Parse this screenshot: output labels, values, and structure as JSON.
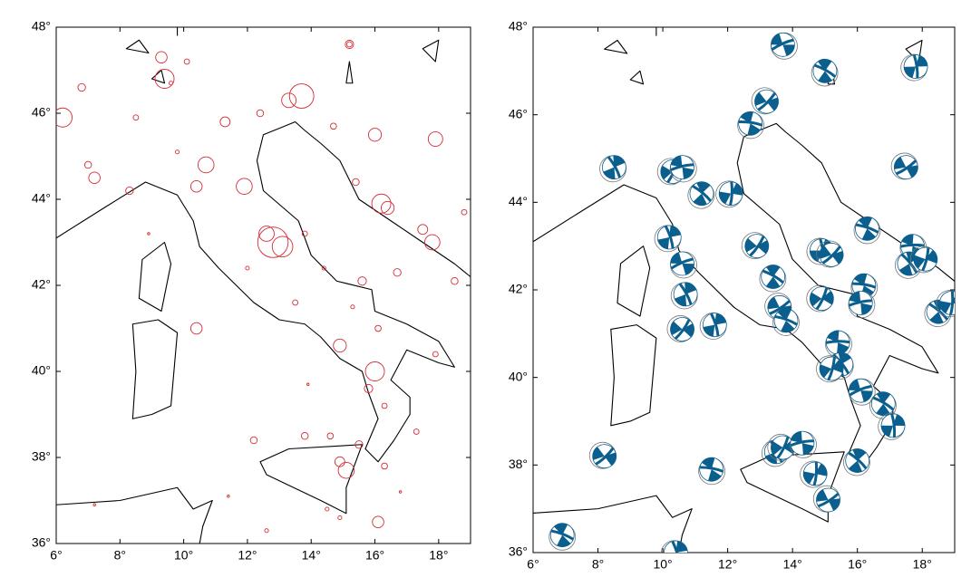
{
  "left_map": {
    "xticks": [
      {
        "value": 6,
        "label": "6°"
      },
      {
        "value": 8,
        "label": "8°"
      },
      {
        "value": 10,
        "label": "10°"
      },
      {
        "value": 12,
        "label": "12°"
      },
      {
        "value": 14,
        "label": "14°"
      },
      {
        "value": 16,
        "label": "16°"
      },
      {
        "value": 18,
        "label": "18°"
      }
    ],
    "yticks": [
      {
        "value": 36,
        "label": "36°"
      },
      {
        "value": 38,
        "label": "38°"
      },
      {
        "value": 40,
        "label": "40°"
      },
      {
        "value": 42,
        "label": "42°"
      },
      {
        "value": 44,
        "label": "44°"
      },
      {
        "value": 46,
        "label": "46°"
      },
      {
        "value": 48,
        "label": "48°"
      }
    ],
    "xlim": [
      6,
      19
    ],
    "ylim": [
      36,
      48
    ],
    "events": [
      {
        "lon": 12.8,
        "lat": 43.0,
        "mag": 6.5
      },
      {
        "lon": 13.1,
        "lat": 42.9,
        "mag": 5.2
      },
      {
        "lon": 12.6,
        "lat": 43.2,
        "mag": 4.5
      },
      {
        "lon": 11.9,
        "lat": 44.3,
        "mag": 4.6
      },
      {
        "lon": 10.7,
        "lat": 44.8,
        "mag": 4.6
      },
      {
        "lon": 10.4,
        "lat": 44.3,
        "mag": 4
      },
      {
        "lon": 9.4,
        "lat": 46.8,
        "mag": 5
      },
      {
        "lon": 9.3,
        "lat": 47.3,
        "mag": 4
      },
      {
        "lon": 13.7,
        "lat": 46.4,
        "mag": 5.7
      },
      {
        "lon": 13.3,
        "lat": 46.3,
        "mag": 4.4
      },
      {
        "lon": 6.2,
        "lat": 45.9,
        "mag": 5
      },
      {
        "lon": 6.8,
        "lat": 46.6,
        "mag": 3.5
      },
      {
        "lon": 16.2,
        "lat": 43.9,
        "mag": 5
      },
      {
        "lon": 16.4,
        "lat": 43.8,
        "mag": 4.2
      },
      {
        "lon": 17.8,
        "lat": 43.0,
        "mag": 4.5
      },
      {
        "lon": 17.5,
        "lat": 43.3,
        "mag": 3.8
      },
      {
        "lon": 15.1,
        "lat": 37.7,
        "mag": 4.6
      },
      {
        "lon": 14.9,
        "lat": 37.9,
        "mag": 3.8
      },
      {
        "lon": 16.0,
        "lat": 40.0,
        "mag": 5
      },
      {
        "lon": 16.1,
        "lat": 36.5,
        "mag": 4
      },
      {
        "lon": 14.9,
        "lat": 40.6,
        "mag": 4.2
      },
      {
        "lon": 15.6,
        "lat": 42.1,
        "mag": 3.6
      },
      {
        "lon": 10.4,
        "lat": 41.0,
        "mag": 4
      },
      {
        "lon": 8.3,
        "lat": 44.2,
        "mag": 3.5
      },
      {
        "lon": 7.2,
        "lat": 44.5,
        "mag": 4
      },
      {
        "lon": 7.0,
        "lat": 44.8,
        "mag": 3.4
      },
      {
        "lon": 16.0,
        "lat": 45.5,
        "mag": 4.2
      },
      {
        "lon": 17.9,
        "lat": 45.4,
        "mag": 4.4
      },
      {
        "lon": 15.2,
        "lat": 47.6,
        "mag": 3.6
      },
      {
        "lon": 9.6,
        "lat": 46.7,
        "mag": 3
      },
      {
        "lon": 11.3,
        "lat": 45.8,
        "mag": 3.8
      },
      {
        "lon": 12.4,
        "lat": 46.0,
        "mag": 3.4
      },
      {
        "lon": 14.7,
        "lat": 45.7,
        "mag": 3.3
      },
      {
        "lon": 15.4,
        "lat": 44.4,
        "mag": 3.4
      },
      {
        "lon": 16.7,
        "lat": 42.3,
        "mag": 3.5
      },
      {
        "lon": 18.5,
        "lat": 42.1,
        "mag": 3.4
      },
      {
        "lon": 18.8,
        "lat": 43.7,
        "mag": 3.2
      },
      {
        "lon": 13.8,
        "lat": 43.2,
        "mag": 3.2
      },
      {
        "lon": 14.4,
        "lat": 42.4,
        "mag": 3
      },
      {
        "lon": 12.0,
        "lat": 42.4,
        "mag": 3
      },
      {
        "lon": 13.5,
        "lat": 41.6,
        "mag": 3.2
      },
      {
        "lon": 15.3,
        "lat": 41.5,
        "mag": 3
      },
      {
        "lon": 16.1,
        "lat": 41.0,
        "mag": 3.3
      },
      {
        "lon": 15.8,
        "lat": 39.6,
        "mag": 3.6
      },
      {
        "lon": 16.3,
        "lat": 39.2,
        "mag": 3.2
      },
      {
        "lon": 17.9,
        "lat": 40.4,
        "mag": 3.2
      },
      {
        "lon": 12.2,
        "lat": 38.4,
        "mag": 3.4
      },
      {
        "lon": 13.8,
        "lat": 38.5,
        "mag": 3.4
      },
      {
        "lon": 14.6,
        "lat": 38.5,
        "mag": 3.3
      },
      {
        "lon": 15.5,
        "lat": 38.3,
        "mag": 3.5
      },
      {
        "lon": 16.3,
        "lat": 37.8,
        "mag": 3.3
      },
      {
        "lon": 14.5,
        "lat": 36.8,
        "mag": 3
      },
      {
        "lon": 12.6,
        "lat": 36.3,
        "mag": 3
      },
      {
        "lon": 11.4,
        "lat": 37.1,
        "mag": 2.8
      },
      {
        "lon": 7.2,
        "lat": 36.9,
        "mag": 2.8
      },
      {
        "lon": 8.9,
        "lat": 43.2,
        "mag": 2.8
      },
      {
        "lon": 9.8,
        "lat": 45.1,
        "mag": 3
      },
      {
        "lon": 8.5,
        "lat": 45.9,
        "mag": 3.2
      },
      {
        "lon": 15.2,
        "lat": 47.6,
        "mag": 3.2
      },
      {
        "lon": 13.9,
        "lat": 39.7,
        "mag": 2.8
      },
      {
        "lon": 17.3,
        "lat": 38.6,
        "mag": 3.2
      },
      {
        "lon": 16.8,
        "lat": 37.2,
        "mag": 2.8
      },
      {
        "lon": 14.9,
        "lat": 36.6,
        "mag": 3
      },
      {
        "lon": 10.1,
        "lat": 47.2,
        "mag": 3.2
      }
    ]
  },
  "right_map": {
    "xticks": [
      {
        "value": 6,
        "label": "6°"
      },
      {
        "value": 8,
        "label": "8°"
      },
      {
        "value": 10,
        "label": "10°"
      },
      {
        "value": 12,
        "label": "12°"
      },
      {
        "value": 14,
        "label": "14°"
      },
      {
        "value": 16,
        "label": "16°"
      },
      {
        "value": 18,
        "label": "18°"
      }
    ],
    "yticks": [
      {
        "value": 36,
        "label": "36°"
      },
      {
        "value": 38,
        "label": "38°"
      },
      {
        "value": 40,
        "label": "40°"
      },
      {
        "value": 42,
        "label": "42°"
      },
      {
        "value": 44,
        "label": "44°"
      },
      {
        "value": 46,
        "label": "46°"
      },
      {
        "value": 48,
        "label": "48°"
      }
    ],
    "xlim": [
      6,
      19
    ],
    "ylim": [
      36,
      48
    ],
    "mechanisms": [
      {
        "lon": 13.7,
        "lat": 47.6
      },
      {
        "lon": 15.0,
        "lat": 47.0
      },
      {
        "lon": 17.8,
        "lat": 47.1
      },
      {
        "lon": 13.2,
        "lat": 46.3
      },
      {
        "lon": 12.7,
        "lat": 45.8
      },
      {
        "lon": 8.5,
        "lat": 44.8
      },
      {
        "lon": 10.3,
        "lat": 44.7
      },
      {
        "lon": 10.6,
        "lat": 44.8
      },
      {
        "lon": 11.2,
        "lat": 44.2
      },
      {
        "lon": 12.1,
        "lat": 44.2
      },
      {
        "lon": 17.5,
        "lat": 44.8
      },
      {
        "lon": 16.3,
        "lat": 43.4
      },
      {
        "lon": 10.2,
        "lat": 43.2
      },
      {
        "lon": 12.9,
        "lat": 43.0
      },
      {
        "lon": 17.7,
        "lat": 43.0
      },
      {
        "lon": 17.6,
        "lat": 42.6
      },
      {
        "lon": 18.1,
        "lat": 42.7
      },
      {
        "lon": 10.6,
        "lat": 42.6
      },
      {
        "lon": 13.4,
        "lat": 42.3
      },
      {
        "lon": 14.9,
        "lat": 42.9
      },
      {
        "lon": 15.2,
        "lat": 42.8
      },
      {
        "lon": 16.2,
        "lat": 42.1
      },
      {
        "lon": 10.7,
        "lat": 41.9
      },
      {
        "lon": 14.9,
        "lat": 41.8
      },
      {
        "lon": 16.1,
        "lat": 41.7
      },
      {
        "lon": 18.5,
        "lat": 41.5
      },
      {
        "lon": 18.9,
        "lat": 41.7
      },
      {
        "lon": 13.6,
        "lat": 41.6
      },
      {
        "lon": 13.8,
        "lat": 41.3
      },
      {
        "lon": 11.6,
        "lat": 41.2
      },
      {
        "lon": 10.6,
        "lat": 41.1
      },
      {
        "lon": 15.4,
        "lat": 40.8
      },
      {
        "lon": 15.5,
        "lat": 40.3
      },
      {
        "lon": 15.2,
        "lat": 40.2
      },
      {
        "lon": 16.1,
        "lat": 39.7
      },
      {
        "lon": 16.8,
        "lat": 39.4
      },
      {
        "lon": 17.1,
        "lat": 38.9
      },
      {
        "lon": 8.2,
        "lat": 38.2
      },
      {
        "lon": 11.5,
        "lat": 37.9
      },
      {
        "lon": 13.5,
        "lat": 38.3
      },
      {
        "lon": 13.7,
        "lat": 38.4
      },
      {
        "lon": 14.3,
        "lat": 38.5
      },
      {
        "lon": 16.0,
        "lat": 38.1
      },
      {
        "lon": 14.7,
        "lat": 37.8
      },
      {
        "lon": 15.1,
        "lat": 37.2
      },
      {
        "lon": 6.9,
        "lat": 36.4
      },
      {
        "lon": 10.4,
        "lat": 36.0
      }
    ]
  }
}
